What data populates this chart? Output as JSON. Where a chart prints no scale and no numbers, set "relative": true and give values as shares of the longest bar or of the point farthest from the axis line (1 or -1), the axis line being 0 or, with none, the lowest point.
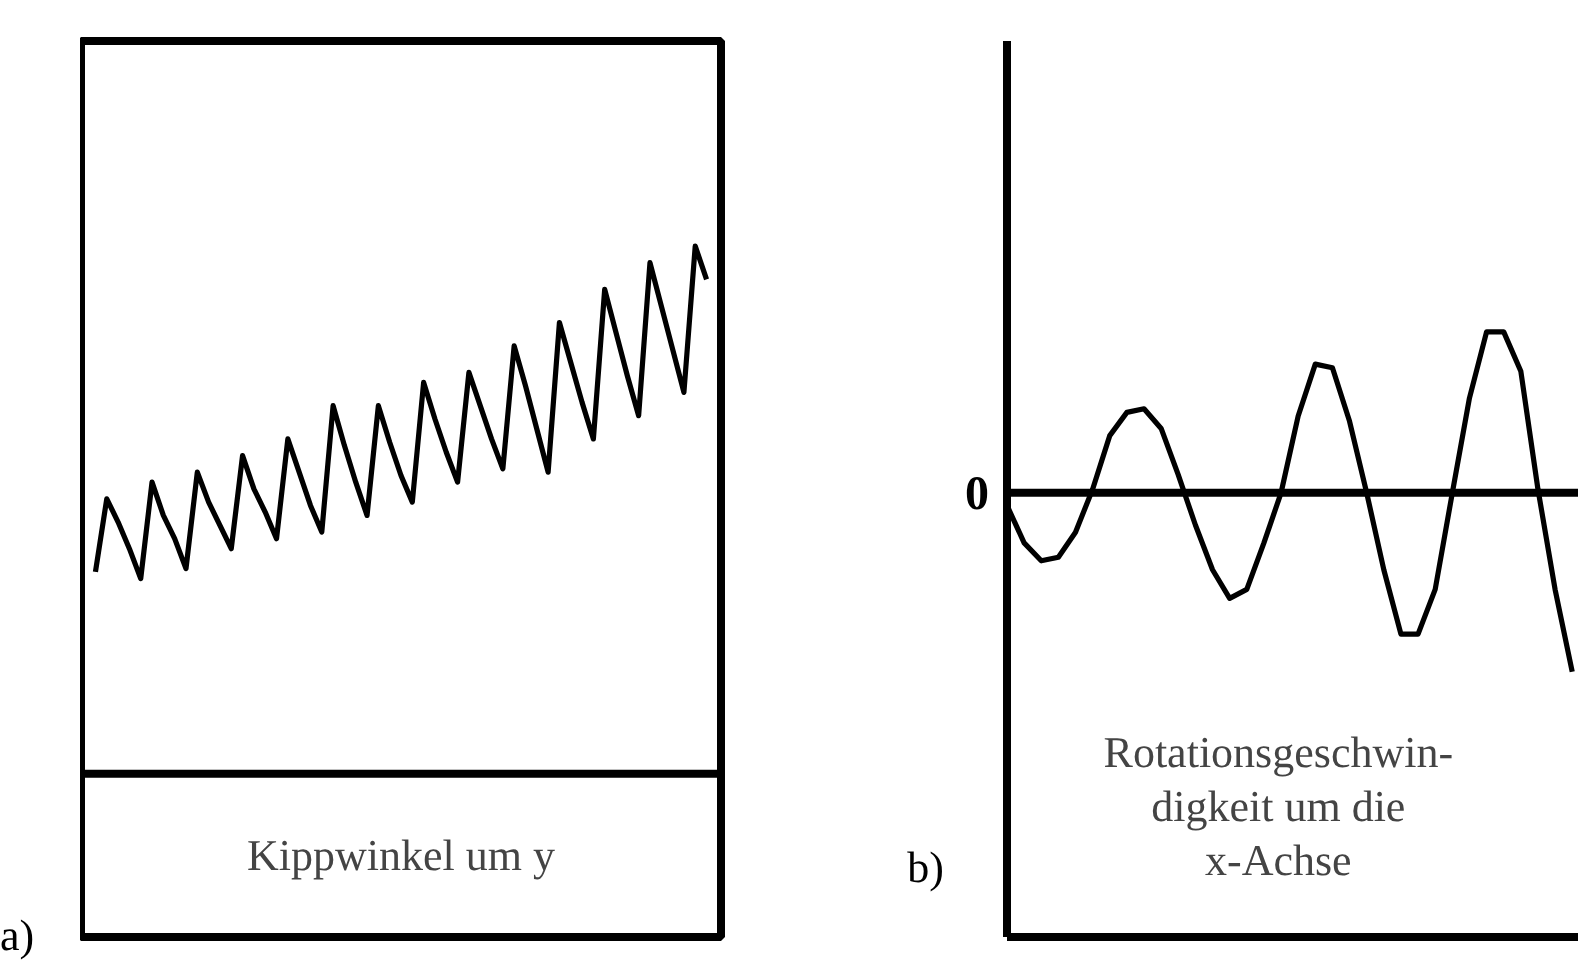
{
  "chart_data": [
    {
      "type": "line",
      "relative": true,
      "color": "#000000",
      "xlabel": "Kippwinkel um y",
      "annotations": [
        "a)"
      ],
      "categories": [
        null,
        null,
        null,
        null,
        null,
        null,
        null,
        null,
        null,
        null,
        null,
        null,
        null,
        null,
        null,
        null,
        null,
        null,
        null,
        null,
        null,
        null,
        null,
        null,
        null,
        null,
        null,
        null,
        null,
        null,
        null,
        null,
        null,
        null,
        null,
        null,
        null,
        null,
        null,
        null,
        null,
        null,
        null,
        null,
        null,
        null,
        null,
        null,
        null,
        null,
        null,
        null,
        null,
        null,
        null
      ],
      "values": [
        0.02,
        0.24,
        0.17,
        0.09,
        0.0,
        0.29,
        0.19,
        0.12,
        0.03,
        0.32,
        0.23,
        0.16,
        0.09,
        0.37,
        0.27,
        0.2,
        0.12,
        0.42,
        0.32,
        0.22,
        0.14,
        0.52,
        0.4,
        0.29,
        0.19,
        0.52,
        0.41,
        0.31,
        0.23,
        0.59,
        0.48,
        0.38,
        0.29,
        0.62,
        0.52,
        0.42,
        0.33,
        0.7,
        0.58,
        0.45,
        0.32,
        0.77,
        0.65,
        0.53,
        0.42,
        0.87,
        0.74,
        0.61,
        0.49,
        0.95,
        0.82,
        0.69,
        0.56,
        1.0,
        0.9
      ]
    },
    {
      "type": "line",
      "relative": true,
      "color": "#000000",
      "xlabel": "Rotationsgeschwin-\ndigkeit um die\nx-Achse",
      "annotations": [
        "b)"
      ],
      "ref_lines": [
        {
          "axis": "y",
          "value": 0,
          "label": "0"
        }
      ],
      "categories": [
        null,
        null,
        null,
        null,
        null,
        null,
        null,
        null,
        null,
        null,
        null,
        null,
        null,
        null,
        null,
        null,
        null,
        null,
        null,
        null,
        null,
        null,
        null,
        null,
        null,
        null,
        null,
        null,
        null,
        null,
        null,
        null,
        null,
        null
      ],
      "values": [
        -0.07,
        -0.28,
        -0.38,
        -0.36,
        -0.22,
        0.02,
        0.32,
        0.45,
        0.47,
        0.36,
        0.1,
        -0.18,
        -0.43,
        -0.59,
        -0.54,
        -0.28,
        0.0,
        0.43,
        0.72,
        0.7,
        0.4,
        0.0,
        -0.43,
        -0.79,
        -0.79,
        -0.54,
        0.0,
        0.53,
        0.9,
        0.9,
        0.68,
        0.02,
        -0.54,
        -1.0
      ]
    }
  ]
}
